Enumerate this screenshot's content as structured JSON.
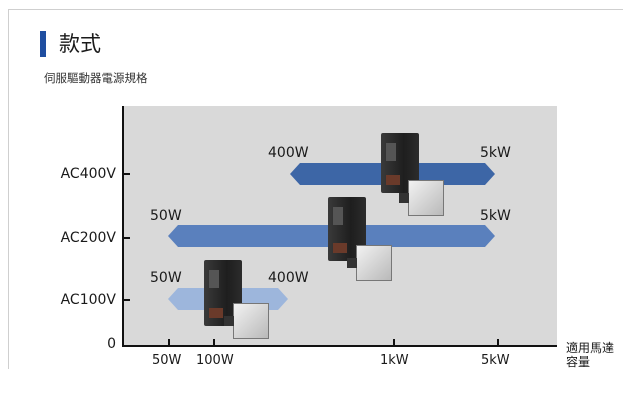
{
  "title": "款式",
  "subtitle": "伺服驅動器電源規格",
  "chart_data": {
    "type": "range",
    "y_categories": [
      "AC400V",
      "AC200V",
      "AC100V"
    ],
    "y_zero_label": "0",
    "x_ticks": [
      "50W",
      "100W",
      "1kW",
      "5kW"
    ],
    "x_unit_label": "適用馬達\n容量",
    "ranges": [
      {
        "voltage": "AC400V",
        "min_label": "400W",
        "max_label": "5kW",
        "min_W": 400,
        "max_W": 5000,
        "color": "#3d66a6"
      },
      {
        "voltage": "AC200V",
        "min_label": "50W",
        "max_label": "5kW",
        "min_W": 50,
        "max_W": 5000,
        "color": "#5a80bd"
      },
      {
        "voltage": "AC100V",
        "min_label": "50W",
        "max_label": "400W",
        "min_W": 50,
        "max_W": 400,
        "color": "#9db6dc"
      }
    ]
  },
  "colors": {
    "title_accent": "#1f4ea0",
    "plot_background": "#d9d9d9"
  },
  "icons": [
    "servo-drive-image",
    "servo-motor-image"
  ]
}
